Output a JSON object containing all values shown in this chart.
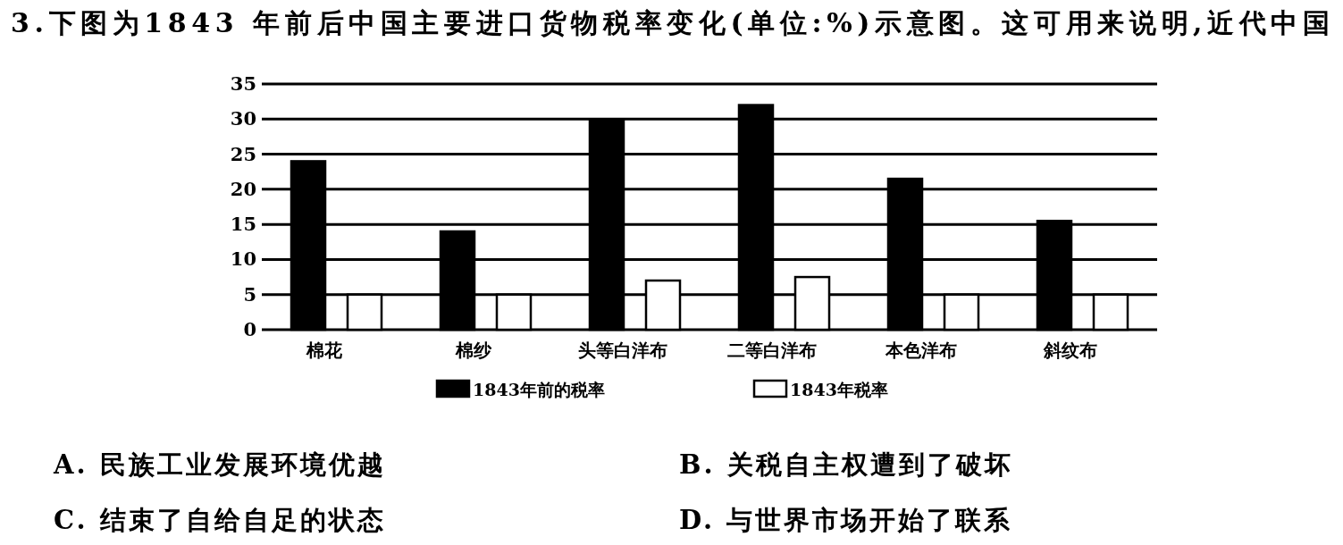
{
  "chart_data": {
    "type": "bar",
    "title": "3.下图为1843 年前后中国主要进口货物税率变化(单位:%)示意图。这可用来说明,近代中国",
    "categories": [
      "棉花",
      "棉纱",
      "头等白洋布",
      "二等白洋布",
      "本色洋布",
      "斜纹布"
    ],
    "series": [
      {
        "name": "1843年前的税率",
        "color": "#000000",
        "values": [
          24,
          14,
          30,
          32,
          21.5,
          15.5
        ]
      },
      {
        "name": "1843年税率",
        "color": "#ffffff",
        "values": [
          5,
          5,
          7,
          7.5,
          5,
          5
        ]
      }
    ],
    "ylim": [
      0,
      35
    ],
    "yticks": [
      0,
      5,
      10,
      15,
      20,
      25,
      30,
      35
    ],
    "grid": "y",
    "legend": "bottom",
    "annotations": [
      "A. 民族工业发展环境优越",
      "B. 关税自主权遭到了破坏",
      "C. 结束了自给自足的状态",
      "D. 与世界市场开始了联系"
    ]
  }
}
